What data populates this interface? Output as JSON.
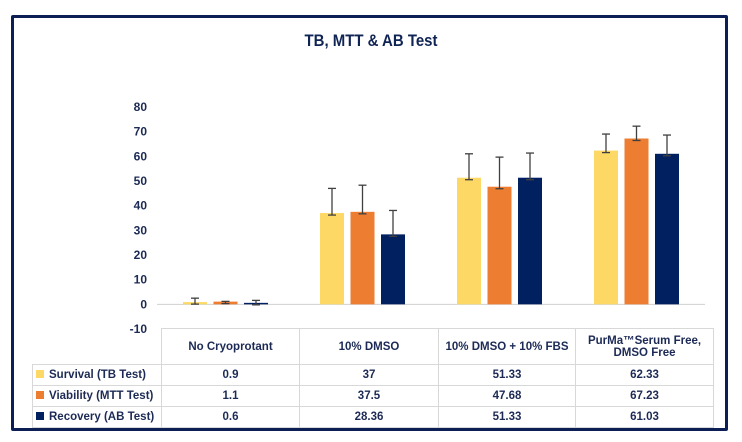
{
  "chart_data": {
    "type": "bar",
    "title": "TB, MTT & AB Test",
    "xlabel": "",
    "ylabel": "",
    "ylim": [
      -10,
      80
    ],
    "yticks": [
      80,
      70,
      60,
      50,
      40,
      30,
      20,
      10,
      0,
      -10
    ],
    "grid": false,
    "legend_placement": "data-table-bottom",
    "categories": [
      "No Cryoprotant",
      "10% DMSO",
      "10% DMSO + 10% FBS",
      "PurMa™Serum Free, DMSO Free"
    ],
    "series": [
      {
        "name": "Survival (TB Test)",
        "color": "#fdd865",
        "values": [
          0.9,
          37,
          51.33,
          62.33
        ],
        "error": [
          1.6,
          10,
          9.7,
          6.7
        ]
      },
      {
        "name": "Viability (MTT Test)",
        "color": "#ed7d31",
        "values": [
          1.1,
          37.5,
          47.68,
          67.23
        ],
        "error": [
          0.1,
          10.8,
          12,
          5
        ]
      },
      {
        "name": "Recovery (AB Test)",
        "color": "#002060",
        "values": [
          0.6,
          28.36,
          51.33,
          61.03
        ],
        "error": [
          1,
          9.7,
          10,
          7.6
        ]
      }
    ],
    "table": {
      "header": [
        "No Cryoprotant",
        "10% DMSO",
        "10% DMSO + 10% FBS",
        "PurMa™Serum Free, DMSO Free"
      ],
      "rows": [
        {
          "label": "Survival (TB Test)",
          "cells": [
            "0.9",
            "37",
            "51.33",
            "62.33"
          ]
        },
        {
          "label": "Viability (MTT Test)",
          "cells": [
            "1.1",
            "37.5",
            "47.68",
            "67.23"
          ]
        },
        {
          "label": "Recovery (AB Test)",
          "cells": [
            "0.6",
            "28.36",
            "51.33",
            "61.03"
          ]
        }
      ]
    }
  },
  "colors": {
    "frame": "#0b1f56",
    "text": "#1c2a55",
    "error_bar": "#404040"
  }
}
